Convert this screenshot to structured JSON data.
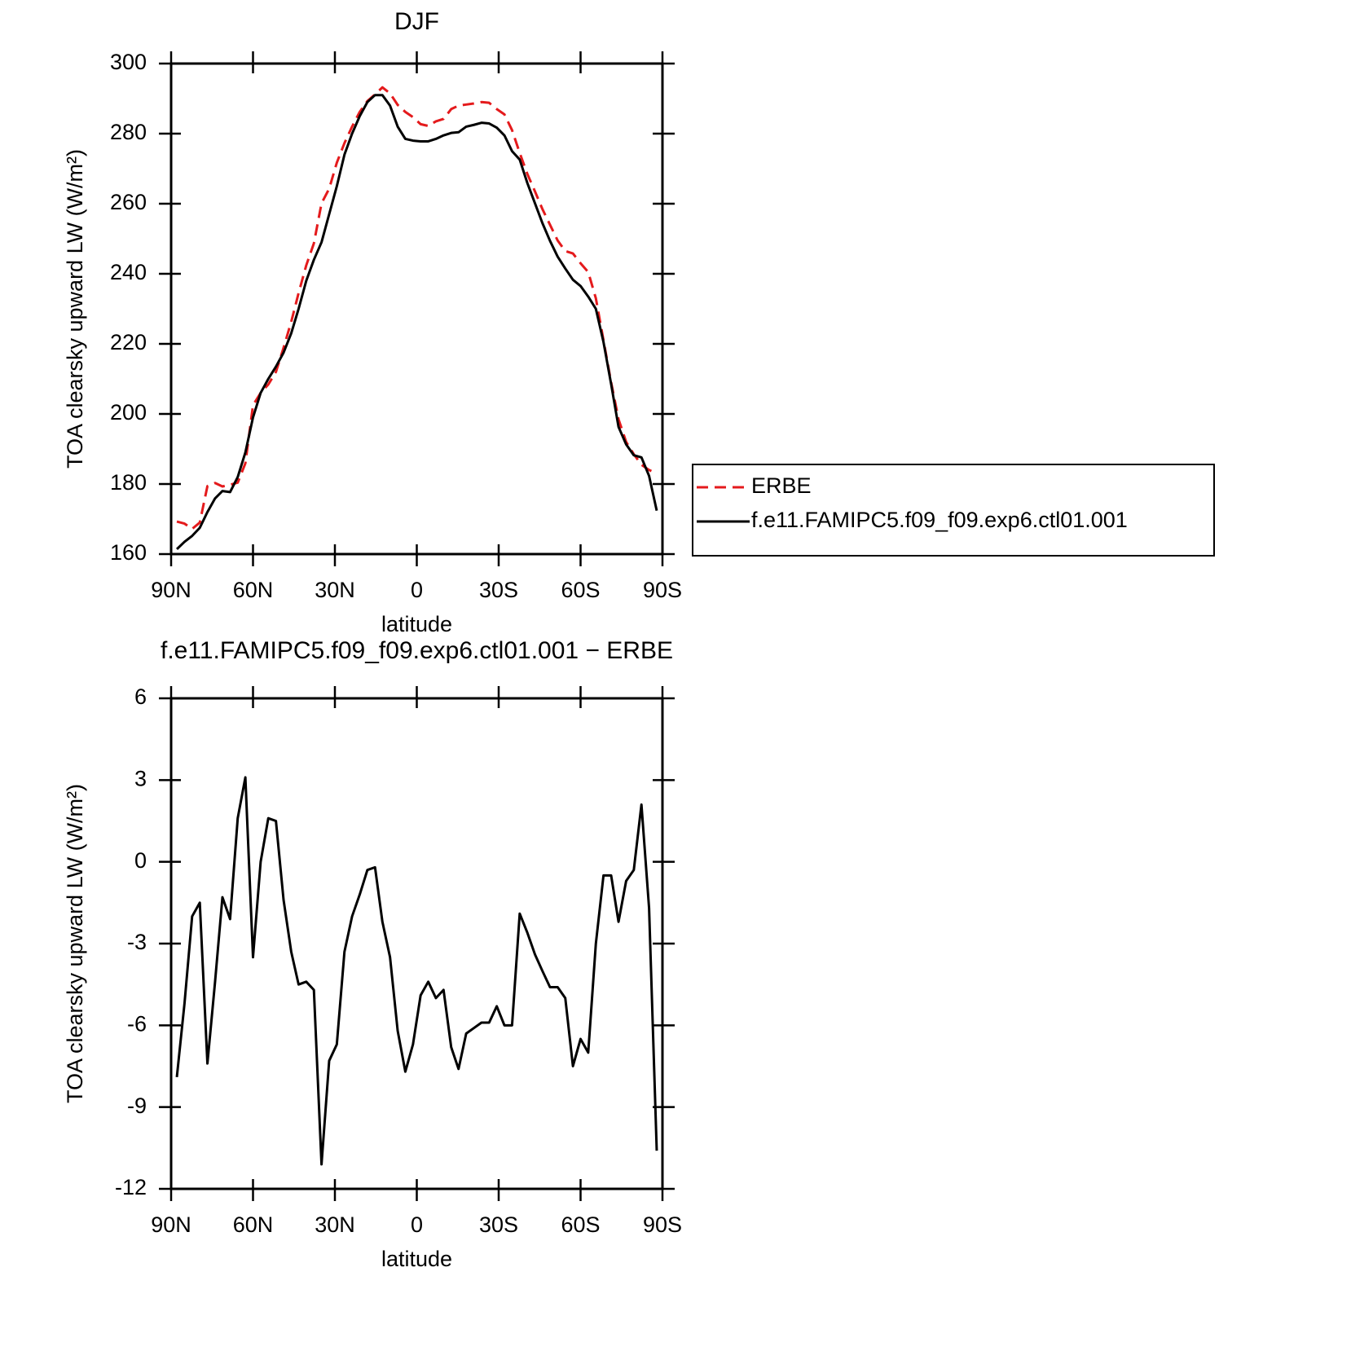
{
  "chart_data": [
    {
      "type": "line",
      "title": "DJF",
      "xlabel": "latitude",
      "ylabel": "TOA clearsky upward LW (W/m²)",
      "x": [
        87.9,
        85.1,
        82.3,
        79.5,
        76.7,
        73.9,
        71.2,
        68.4,
        65.6,
        62.8,
        60.0,
        57.2,
        54.4,
        51.6,
        48.8,
        46.0,
        43.3,
        40.5,
        37.7,
        34.9,
        32.1,
        29.3,
        26.5,
        23.7,
        20.9,
        18.1,
        15.3,
        12.6,
        9.8,
        7.0,
        4.2,
        1.4,
        -1.4,
        -4.2,
        -7.0,
        -9.8,
        -12.6,
        -15.3,
        -18.1,
        -20.9,
        -23.7,
        -26.5,
        -29.3,
        -32.1,
        -34.9,
        -37.7,
        -40.5,
        -43.3,
        -46.0,
        -48.8,
        -51.6,
        -54.4,
        -57.2,
        -60.0,
        -62.8,
        -65.6,
        -68.4,
        -71.2,
        -73.9,
        -76.7,
        -79.5,
        -82.3,
        -85.1,
        -87.9
      ],
      "series": [
        {
          "name": "ERBE",
          "color": "#e41a1c",
          "linestyle": "dashed",
          "values": [
            169.3,
            168.7,
            167.2,
            169.0,
            179.4,
            180.3,
            179.3,
            179.8,
            180.4,
            185.9,
            202.5,
            206.0,
            208.4,
            212.0,
            218.9,
            226.3,
            234.5,
            242.4,
            248.7,
            260.1,
            264.3,
            271.7,
            277.3,
            282.0,
            286.2,
            289.3,
            291.2,
            293.2,
            291.5,
            288.2,
            286.2,
            284.7,
            282.7,
            282.2,
            283.5,
            284.2,
            287.0,
            288.0,
            288.3,
            288.6,
            289.0,
            288.8,
            287.0,
            285.5,
            281.0,
            274.5,
            268.5,
            263.5,
            258.5,
            254.0,
            249.5,
            246.5,
            245.8,
            243.0,
            240.5,
            233.0,
            221.0,
            209.0,
            198.5,
            192.0,
            188.5,
            185.5,
            184.0,
            183.0
          ]
        },
        {
          "name": "f.e11.FAMIPC5.f09_f09.exp6.ctl01.001",
          "color": "#000000",
          "linestyle": "solid",
          "values": [
            161.4,
            163.5,
            165.2,
            167.5,
            172.0,
            175.9,
            178.0,
            177.7,
            182.0,
            189.0,
            199.0,
            206.0,
            210.0,
            213.5,
            217.5,
            223.0,
            230.0,
            238.0,
            244.0,
            249.0,
            257.0,
            265.0,
            274.0,
            280.0,
            285.0,
            289.0,
            291.0,
            291.0,
            288.0,
            282.0,
            278.5,
            278.0,
            277.8,
            277.8,
            278.5,
            279.5,
            280.2,
            280.4,
            282.0,
            282.5,
            283.1,
            282.9,
            281.7,
            279.5,
            275.0,
            272.6,
            265.9,
            260.1,
            254.5,
            249.4,
            244.9,
            241.5,
            238.3,
            236.5,
            233.5,
            230.0,
            220.5,
            208.5,
            196.3,
            191.3,
            188.2,
            187.6,
            182.3,
            172.4
          ]
        }
      ],
      "xlim": [
        90,
        -90
      ],
      "xticks": [
        {
          "value": 90,
          "label": "90N"
        },
        {
          "value": 60,
          "label": "60N"
        },
        {
          "value": 30,
          "label": "30N"
        },
        0,
        {
          "value": -30,
          "label": "30S"
        },
        {
          "value": -60,
          "label": "60S"
        },
        {
          "value": -90,
          "label": "90S"
        }
      ],
      "ylim": [
        160,
        300
      ],
      "yticks": [
        160,
        180,
        200,
        220,
        240,
        260,
        280,
        300
      ],
      "legend": "outside-right"
    },
    {
      "type": "line",
      "title": "f.e11.FAMIPC5.f09_f09.exp6.ctl01.001 − ERBE",
      "xlabel": "latitude",
      "ylabel": "TOA clearsky upward LW (W/m²)",
      "x": [
        87.9,
        85.1,
        82.3,
        79.5,
        76.7,
        73.9,
        71.2,
        68.4,
        65.6,
        62.8,
        60.0,
        57.2,
        54.4,
        51.6,
        48.8,
        46.0,
        43.3,
        40.5,
        37.7,
        34.9,
        32.1,
        29.3,
        26.5,
        23.7,
        20.9,
        18.1,
        15.3,
        12.6,
        9.8,
        7.0,
        4.2,
        1.4,
        -1.4,
        -4.2,
        -7.0,
        -9.8,
        -12.6,
        -15.3,
        -18.1,
        -20.9,
        -23.7,
        -26.5,
        -29.3,
        -32.1,
        -34.9,
        -37.7,
        -40.5,
        -43.3,
        -46.0,
        -48.8,
        -51.6,
        -54.4,
        -57.2,
        -60.0,
        -62.8,
        -65.6,
        -68.4,
        -71.2,
        -73.9,
        -76.7,
        -79.5,
        -82.3,
        -85.1,
        -87.9
      ],
      "color": "#000000",
      "values": [
        -7.9,
        -5.2,
        -2.0,
        -1.5,
        -7.4,
        -4.4,
        -1.3,
        -2.1,
        1.6,
        3.1,
        -3.5,
        0.0,
        1.6,
        1.5,
        -1.4,
        -3.3,
        -4.5,
        -4.4,
        -4.7,
        -11.1,
        -7.3,
        -6.7,
        -3.3,
        -2.0,
        -1.2,
        -0.3,
        -0.2,
        -2.2,
        -3.5,
        -6.2,
        -7.7,
        -6.7,
        -4.9,
        -4.4,
        -5.0,
        -4.7,
        -6.8,
        -7.6,
        -6.3,
        -6.1,
        -5.9,
        -5.9,
        -5.3,
        -6.0,
        -6.0,
        -1.9,
        -2.6,
        -3.4,
        -4.0,
        -4.6,
        -4.6,
        -5.0,
        -7.5,
        -6.5,
        -7.0,
        -3.0,
        -0.5,
        -0.5,
        -2.2,
        -0.7,
        -0.3,
        2.1,
        -1.7,
        -10.6
      ],
      "xlim": [
        90,
        -90
      ],
      "xticks": [
        {
          "value": 90,
          "label": "90N"
        },
        {
          "value": 60,
          "label": "60N"
        },
        {
          "value": 30,
          "label": "30N"
        },
        0,
        {
          "value": -30,
          "label": "30S"
        },
        {
          "value": -60,
          "label": "60S"
        },
        {
          "value": -90,
          "label": "90S"
        }
      ],
      "ylim": [
        -12,
        6
      ],
      "yticks": [
        -12,
        -9,
        -6,
        -3,
        0,
        3,
        6
      ]
    }
  ]
}
